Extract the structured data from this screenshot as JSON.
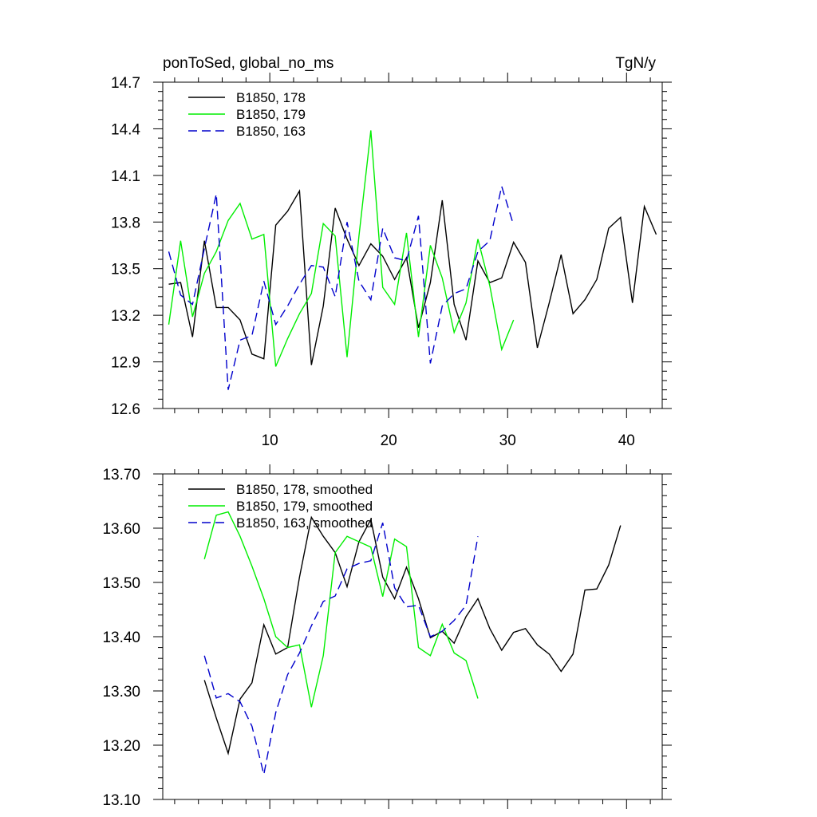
{
  "chart_data": [
    {
      "type": "line",
      "title_left": "ponToSed, global_no_ms",
      "title_right": "TgN/y",
      "xlim": [
        1,
        43
      ],
      "ylim": [
        12.6,
        14.7
      ],
      "x_ticks": [
        10,
        20,
        30,
        40
      ],
      "x_tick_labels": [
        "10",
        "20",
        "30",
        "40"
      ],
      "y_ticks": [
        12.6,
        12.9,
        13.2,
        13.5,
        13.8,
        14.1,
        14.4,
        14.7
      ],
      "y_tick_labels": [
        "12.6",
        "12.9",
        "13.2",
        "13.5",
        "13.8",
        "14.1",
        "14.4",
        "14.7"
      ],
      "legend_position": "top-left",
      "series": [
        {
          "name": "B1850, 178",
          "color": "#000000",
          "dash": "solid",
          "x": [
            1.5,
            2.5,
            3.5,
            4.5,
            5.5,
            6.5,
            7.5,
            8.5,
            9.5,
            10.5,
            11.5,
            12.5,
            13.5,
            14.5,
            15.5,
            16.5,
            17.5,
            18.5,
            19.5,
            20.5,
            21.5,
            22.5,
            23.5,
            24.5,
            25.5,
            26.5,
            27.5,
            28.5,
            29.5,
            30.5,
            31.5,
            32.5,
            33.5,
            34.5,
            35.5,
            36.5,
            37.5,
            38.5,
            39.5,
            40.5,
            41.5,
            42.5
          ],
          "values": [
            13.4,
            13.41,
            13.06,
            13.68,
            13.25,
            13.25,
            13.17,
            12.95,
            12.92,
            13.78,
            13.87,
            14.0,
            12.88,
            13.26,
            13.89,
            13.69,
            13.52,
            13.66,
            13.58,
            13.43,
            13.57,
            13.12,
            13.41,
            13.94,
            13.27,
            13.04,
            13.55,
            13.41,
            13.44,
            13.67,
            13.54,
            12.99,
            13.28,
            13.59,
            13.21,
            13.3,
            13.43,
            13.76,
            13.83,
            13.28,
            13.9,
            13.72
          ]
        },
        {
          "name": "B1850, 179",
          "color": "#00ee00",
          "dash": "solid",
          "x": [
            1.5,
            2.5,
            3.5,
            4.5,
            5.5,
            6.5,
            7.5,
            8.5,
            9.5,
            10.5,
            11.5,
            12.5,
            13.5,
            14.5,
            15.5,
            16.5,
            17.5,
            18.5,
            19.5,
            20.5,
            21.5,
            22.5,
            23.5,
            24.5,
            25.5,
            26.5,
            27.5,
            28.5,
            29.5,
            30.5
          ],
          "values": [
            13.14,
            13.68,
            13.19,
            13.47,
            13.61,
            13.81,
            13.92,
            13.69,
            13.72,
            12.87,
            13.05,
            13.21,
            13.34,
            13.79,
            13.71,
            12.93,
            13.71,
            14.39,
            13.38,
            13.27,
            13.73,
            13.06,
            13.65,
            13.44,
            13.09,
            13.28,
            13.69,
            13.39,
            12.98,
            13.17
          ]
        },
        {
          "name": "B1850, 163",
          "color": "#0000cc",
          "dash": "dashed",
          "x": [
            1.5,
            2.5,
            3.5,
            4.5,
            5.5,
            6.5,
            7.5,
            8.5,
            9.5,
            10.5,
            11.5,
            12.5,
            13.5,
            14.5,
            15.5,
            16.5,
            17.5,
            18.5,
            19.5,
            20.5,
            21.5,
            22.5,
            23.5,
            24.5,
            25.5,
            26.5,
            27.5,
            28.5,
            29.5,
            30.5
          ],
          "values": [
            13.61,
            13.33,
            13.27,
            13.63,
            13.98,
            12.72,
            13.04,
            13.07,
            13.42,
            13.14,
            13.26,
            13.4,
            13.52,
            13.51,
            13.32,
            13.8,
            13.42,
            13.3,
            13.76,
            13.57,
            13.55,
            13.84,
            12.89,
            13.26,
            13.34,
            13.37,
            13.61,
            13.68,
            14.03,
            13.78
          ]
        }
      ]
    },
    {
      "type": "line",
      "xlim": [
        1,
        43
      ],
      "ylim": [
        13.1,
        13.7
      ],
      "x_ticks": [
        10,
        20,
        30,
        40
      ],
      "y_ticks": [
        13.1,
        13.2,
        13.3,
        13.4,
        13.5,
        13.6,
        13.7
      ],
      "y_tick_labels": [
        "13.10",
        "13.20",
        "13.30",
        "13.40",
        "13.50",
        "13.60",
        "13.70"
      ],
      "legend_position": "top-left",
      "series": [
        {
          "name": "B1850, 178, smoothed",
          "color": "#000000",
          "dash": "solid",
          "x": [
            4.5,
            5.5,
            6.5,
            7.5,
            8.5,
            9.5,
            10.5,
            11.5,
            12.5,
            13.5,
            14.5,
            15.5,
            16.5,
            17.5,
            18.5,
            19.5,
            20.5,
            21.5,
            22.5,
            23.5,
            24.5,
            25.5,
            26.5,
            27.5,
            28.5,
            29.5,
            30.5,
            31.5,
            32.5,
            33.5,
            34.5,
            35.5,
            36.5,
            37.5,
            38.5,
            39.5
          ],
          "values": [
            13.32,
            13.25,
            13.185,
            13.285,
            13.315,
            13.422,
            13.368,
            13.38,
            13.51,
            13.62,
            13.585,
            13.555,
            13.492,
            13.575,
            13.616,
            13.51,
            13.47,
            13.528,
            13.47,
            13.398,
            13.41,
            13.388,
            13.437,
            13.47,
            13.415,
            13.375,
            13.408,
            13.415,
            13.385,
            13.368,
            13.336,
            13.368,
            13.486,
            13.488,
            13.532,
            13.605
          ]
        },
        {
          "name": "B1850, 179, smoothed",
          "color": "#00ee00",
          "dash": "solid",
          "x": [
            4.5,
            5.5,
            6.5,
            7.5,
            8.5,
            9.5,
            10.5,
            11.5,
            12.5,
            13.5,
            14.5,
            15.5,
            16.5,
            17.5,
            18.5,
            19.5,
            20.5,
            21.5,
            22.5,
            23.5,
            24.5,
            25.5,
            26.5,
            27.5
          ],
          "values": [
            13.543,
            13.624,
            13.63,
            13.585,
            13.53,
            13.47,
            13.4,
            13.38,
            13.385,
            13.27,
            13.365,
            13.555,
            13.585,
            13.575,
            13.565,
            13.474,
            13.58,
            13.566,
            13.38,
            13.365,
            13.423,
            13.37,
            13.356,
            13.286
          ]
        },
        {
          "name": "B1850, 163, smoothed",
          "color": "#0000cc",
          "dash": "dashed",
          "x": [
            4.5,
            5.5,
            6.5,
            7.5,
            8.5,
            9.5,
            10.5,
            11.5,
            12.5,
            13.5,
            14.5,
            15.5,
            16.5,
            17.5,
            18.5,
            19.5,
            20.5,
            21.5,
            22.5,
            23.5,
            24.5,
            25.5,
            26.5,
            27.5
          ],
          "values": [
            13.365,
            13.287,
            13.295,
            13.28,
            13.235,
            13.146,
            13.26,
            13.33,
            13.37,
            13.42,
            13.465,
            13.475,
            13.525,
            13.535,
            13.54,
            13.61,
            13.49,
            13.455,
            13.458,
            13.4,
            13.41,
            13.43,
            13.458,
            13.585
          ]
        }
      ]
    }
  ]
}
